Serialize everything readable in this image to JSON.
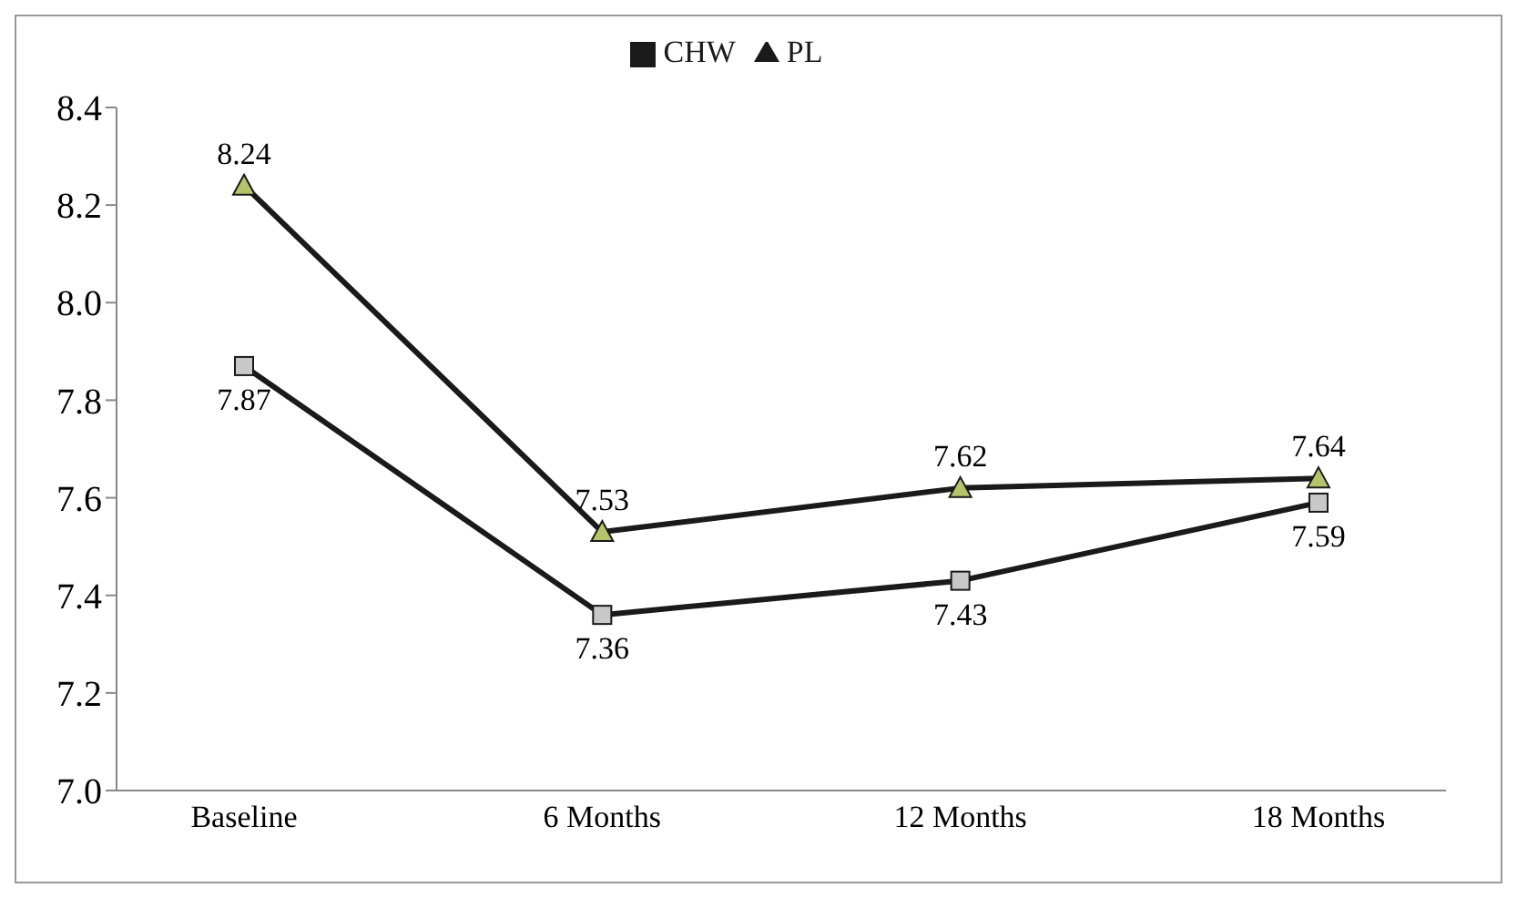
{
  "chart_data": {
    "type": "line",
    "categories": [
      "Baseline",
      "6 Months",
      "12 Months",
      "18 Months"
    ],
    "series": [
      {
        "name": "CHW",
        "color": "#1a1a1a",
        "marker": "square",
        "values": [
          7.87,
          7.36,
          7.43,
          7.59
        ]
      },
      {
        "name": "PL",
        "color": "#1a1a1a",
        "marker": "triangle",
        "values": [
          8.24,
          7.53,
          7.62,
          7.64
        ]
      }
    ],
    "ylim": [
      7.0,
      8.4
    ],
    "yticks": [
      {
        "value": 7.0,
        "label": "7.0"
      },
      {
        "value": 7.2,
        "label": "7.2"
      },
      {
        "value": 7.4,
        "label": "7.4"
      },
      {
        "value": 7.6,
        "label": "7.6"
      },
      {
        "value": 7.8,
        "label": "7.8"
      },
      {
        "value": 8.0,
        "label": "8.0"
      },
      {
        "value": 8.2,
        "label": "8.2"
      },
      {
        "value": 8.4,
        "label": "8.4"
      }
    ],
    "grid": false,
    "legend": "top",
    "data_labels": true
  }
}
